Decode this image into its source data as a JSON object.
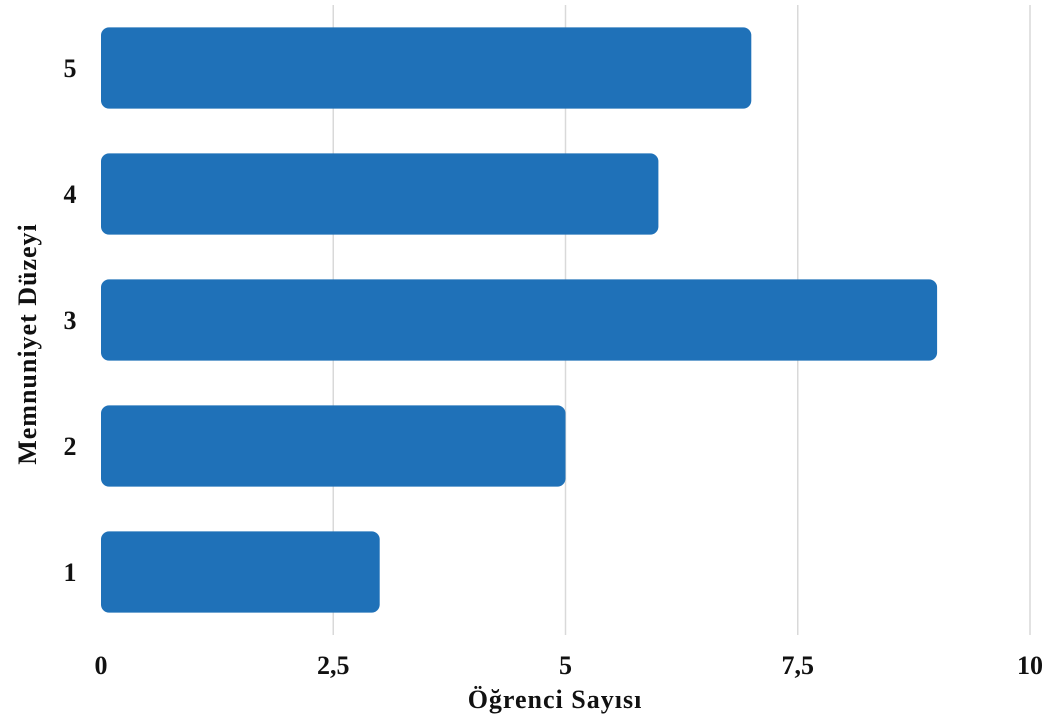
{
  "chart_data": {
    "type": "bar",
    "orientation": "horizontal",
    "title": "",
    "categories": [
      "1",
      "2",
      "3",
      "4",
      "5"
    ],
    "values": [
      3,
      5,
      9,
      6,
      7
    ],
    "xlabel": "Öğrenci Sayısı",
    "ylabel": "Memnuniyet Düzeyi",
    "xlim": [
      0,
      10
    ],
    "xticks": [
      0,
      2.5,
      5,
      7.5,
      10
    ],
    "xtick_labels": [
      "0",
      "2,5",
      "5",
      "7,5",
      "10"
    ],
    "grid": "vertical",
    "legend": "none",
    "colors": {
      "bar": "#1f71b8",
      "grid": "#d9d9d9",
      "text": "#111111"
    }
  }
}
